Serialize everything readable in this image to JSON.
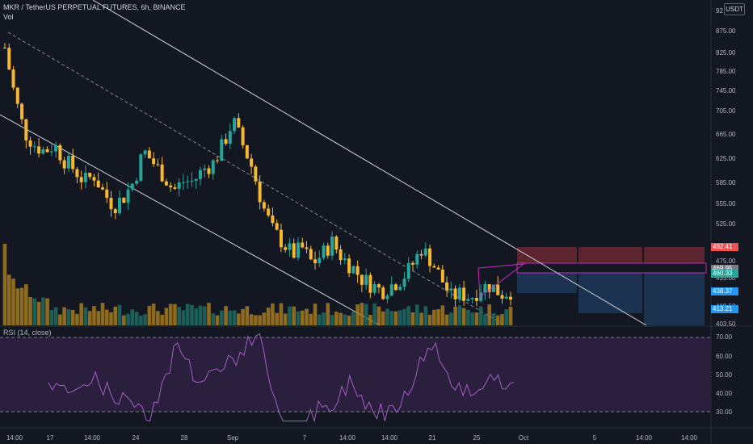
{
  "header": {
    "symbol_title": "MKR / TetherUS PERPETUAL FUTURES, 6h, BINANCE",
    "volume_label": "Vol",
    "currency_button": "USDT"
  },
  "rsi_panel": {
    "label": "RSI (14, close)",
    "upper_band": 70,
    "lower_band": 30
  },
  "price_scale": {
    "ticks": [
      "92",
      "875.00",
      "825.00",
      "785.00",
      "745.00",
      "705.00",
      "665.00",
      "625.00",
      "585.00",
      "555.00",
      "525.00",
      "475.00",
      "433.00",
      "419.50",
      "403.50"
    ]
  },
  "rsi_scale": {
    "ticks": [
      "70.00",
      "60.00",
      "50.00",
      "40.00",
      "30.00"
    ]
  },
  "price_tags": [
    {
      "label": "492.41",
      "color": "#ef5350"
    },
    {
      "label": "469.95",
      "color": "#787b86"
    },
    {
      "label": "460.33",
      "color": "#26a69a"
    },
    {
      "label": "438.37",
      "color": "#2196f3"
    },
    {
      "label": "413.21",
      "color": "#2196f3"
    }
  ],
  "time_axis": {
    "ticks": [
      "14:00",
      "17",
      "14:00",
      "24",
      "28",
      "Sep",
      "7",
      "14:00",
      "14:00",
      "21",
      "25",
      "Oct",
      "5",
      "14:00",
      "14:00"
    ]
  },
  "colors": {
    "background": "#131722",
    "candle_up": "#26a69a",
    "candle_down": "#f7b731",
    "channel": "#d1d4dc",
    "rsi_line": "#a55fc7",
    "rsi_band_fill": "#2a1f3d",
    "stop_zone": "#7a2b35",
    "target_zone": "#1e3a5c",
    "triangle": "#c42bbd"
  },
  "chart_data": {
    "type": "candlestick",
    "symbol": "MKR / TetherUS PERPETUAL FUTURES",
    "interval": "6h",
    "exchange": "BINANCE",
    "ylim": [
      403.5,
      925
    ],
    "close_path": [
      860,
      780,
      720,
      700,
      690,
      700,
      675,
      660,
      640,
      650,
      620,
      600,
      615,
      640,
      690,
      670,
      650,
      625,
      640,
      640,
      660,
      670,
      700,
      740,
      700,
      660,
      600,
      560,
      540,
      520,
      530,
      505,
      520,
      540,
      515,
      500,
      480,
      470,
      460,
      470,
      480,
      500,
      530,
      510,
      480,
      450,
      455,
      450,
      465,
      470,
      455,
      460
    ],
    "channel": {
      "upper_line": "descending",
      "middle_line": "dashed",
      "lower_line": "descending"
    },
    "rsi": {
      "period": 14,
      "source": "close",
      "levels": [
        70,
        30
      ],
      "last_value": 46
    }
  }
}
